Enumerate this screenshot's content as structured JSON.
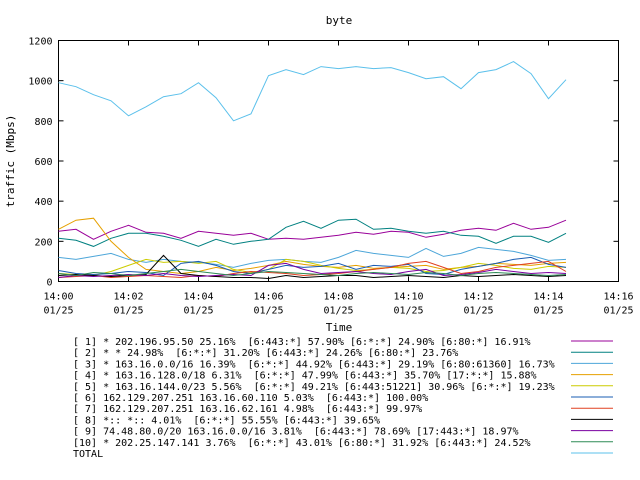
{
  "chart_data": {
    "type": "line",
    "title": "byte",
    "xlabel": "Time",
    "ylabel": "traffic (Mbps)",
    "ylim": [
      0,
      1200
    ],
    "yticks": [
      0,
      200,
      400,
      600,
      800,
      1000,
      1200
    ],
    "xlim": [
      0,
      16
    ],
    "xticks": [
      0,
      2,
      4,
      6,
      8,
      10,
      12,
      14,
      16
    ],
    "xtick_labels": [
      [
        "14:00",
        "01/25"
      ],
      [
        "14:02",
        "01/25"
      ],
      [
        "14:04",
        "01/25"
      ],
      [
        "14:06",
        "01/25"
      ],
      [
        "14:08",
        "01/25"
      ],
      [
        "14:10",
        "01/25"
      ],
      [
        "14:12",
        "01/25"
      ],
      [
        "14:14",
        "01/25"
      ],
      [
        "14:16",
        "01/25"
      ]
    ],
    "x": [
      0,
      0.5,
      1,
      1.5,
      2,
      2.5,
      3,
      3.5,
      4,
      4.5,
      5,
      5.5,
      6,
      6.5,
      7,
      7.5,
      8,
      8.5,
      9,
      9.5,
      10,
      10.5,
      11,
      11.5,
      12,
      12.5,
      13,
      13.5,
      14,
      14.5
    ],
    "grid": false,
    "legend_position": "bottom",
    "series": [
      {
        "name": "[ 1] * 202.196.95.50 25.16%  [6:443:*] 57.90% [6:*:*] 24.90% [6:80:*] 16.91%",
        "color": "#990099",
        "values": [
          250,
          260,
          210,
          250,
          280,
          245,
          240,
          215,
          250,
          240,
          230,
          240,
          210,
          215,
          210,
          220,
          230,
          245,
          235,
          250,
          245,
          220,
          235,
          255,
          265,
          255,
          290,
          260,
          270,
          305
        ]
      },
      {
        "name": "[ 2] * * 24.98%  [6:*:*] 31.20% [6:443:*] 24.26% [6:80:*] 23.76%",
        "color": "#008080",
        "values": [
          215,
          205,
          175,
          215,
          240,
          240,
          225,
          205,
          175,
          210,
          185,
          200,
          210,
          270,
          300,
          265,
          305,
          310,
          260,
          265,
          250,
          240,
          250,
          230,
          225,
          190,
          225,
          225,
          195,
          240
        ]
      },
      {
        "name": "[ 3] * 163.16.0.0/16 16.39%  [6:*:*] 44.92% [6:443:*] 29.19% [6:80:61360] 16.73%",
        "color": "#4da6d9",
        "values": [
          120,
          110,
          125,
          140,
          110,
          95,
          110,
          100,
          95,
          85,
          70,
          90,
          105,
          110,
          100,
          95,
          120,
          155,
          140,
          130,
          120,
          165,
          125,
          140,
          170,
          160,
          150,
          130,
          105,
          110
        ]
      },
      {
        "name": "[ 4] * 163.16.128.0/18 6.31%  [6:*:*] 47.99% [6:443:*] 35.70% [17:*:*] 15.88%",
        "color": "#e6a000",
        "values": [
          260,
          305,
          315,
          200,
          120,
          60,
          50,
          40,
          50,
          70,
          55,
          65,
          80,
          100,
          85,
          75,
          70,
          80,
          65,
          70,
          75,
          80,
          60,
          70,
          75,
          90,
          85,
          80,
          90,
          95
        ]
      },
      {
        "name": "[ 5] * 163.16.144.0/23 5.56%  [6:*:*] 49.21% [6:443:51221] 30.96% [6:*:*] 19.23%",
        "color": "#cccc00",
        "values": [
          40,
          35,
          30,
          50,
          80,
          110,
          95,
          100,
          90,
          100,
          60,
          45,
          60,
          110,
          100,
          80,
          65,
          55,
          60,
          70,
          65,
          50,
          55,
          70,
          90,
          80,
          65,
          60,
          75,
          70
        ]
      },
      {
        "name": "[ 6] 162.129.207.251 163.16.60.110 5.03%  [6:443:*] 100.00%",
        "color": "#1a5cb3",
        "values": [
          55,
          40,
          35,
          40,
          50,
          45,
          30,
          90,
          100,
          80,
          50,
          40,
          60,
          80,
          70,
          75,
          90,
          60,
          80,
          75,
          85,
          40,
          35,
          60,
          75,
          90,
          110,
          120,
          85,
          70
        ]
      },
      {
        "name": "[ 7] 162.129.207.251 163.16.62.161 4.98%  [6:443:*] 99.97%",
        "color": "#e04020",
        "values": [
          20,
          25,
          30,
          20,
          25,
          30,
          25,
          20,
          30,
          25,
          40,
          50,
          45,
          40,
          30,
          35,
          40,
          50,
          60,
          70,
          90,
          100,
          70,
          40,
          50,
          70,
          80,
          90,
          100,
          50
        ]
      },
      {
        "name": "[ 8] *:: *:: 4.01%  [6:*:*] 55.55% [6:443:*] 39.65%",
        "color": "#000000",
        "values": [
          30,
          35,
          30,
          25,
          30,
          35,
          130,
          40,
          30,
          25,
          20,
          20,
          15,
          30,
          20,
          25,
          30,
          30,
          20,
          25,
          30,
          25,
          20,
          30,
          25,
          30,
          35,
          30,
          25,
          30
        ]
      },
      {
        "name": "[ 9] 74.48.80.0/20 163.16.0.0/16 3.81%  [6:443:*] 78.69% [17:443:*] 18.97%",
        "color": "#7a00a0",
        "values": [
          20,
          30,
          25,
          30,
          35,
          30,
          40,
          30,
          25,
          30,
          35,
          30,
          80,
          90,
          60,
          40,
          45,
          50,
          40,
          35,
          50,
          60,
          30,
          35,
          45,
          60,
          50,
          40,
          45,
          40
        ]
      },
      {
        "name": "[10] * 202.25.147.141 3.76%  [6:*:*] 43.01% [6:80:*] 31.92% [6:443:*] 24.52%",
        "color": "#2e8b57",
        "values": [
          40,
          30,
          45,
          40,
          30,
          40,
          50,
          60,
          50,
          40,
          30,
          40,
          50,
          45,
          40,
          35,
          30,
          40,
          45,
          40,
          35,
          45,
          40,
          30,
          40,
          45,
          40,
          35,
          30,
          35
        ]
      },
      {
        "name": "TOTAL",
        "color": "#5bc0eb",
        "values": [
          990,
          970,
          930,
          900,
          825,
          870,
          920,
          935,
          990,
          915,
          800,
          835,
          1025,
          1055,
          1030,
          1070,
          1060,
          1070,
          1060,
          1065,
          1040,
          1010,
          1020,
          960,
          1040,
          1055,
          1095,
          1035,
          910,
          1005
        ]
      }
    ]
  }
}
